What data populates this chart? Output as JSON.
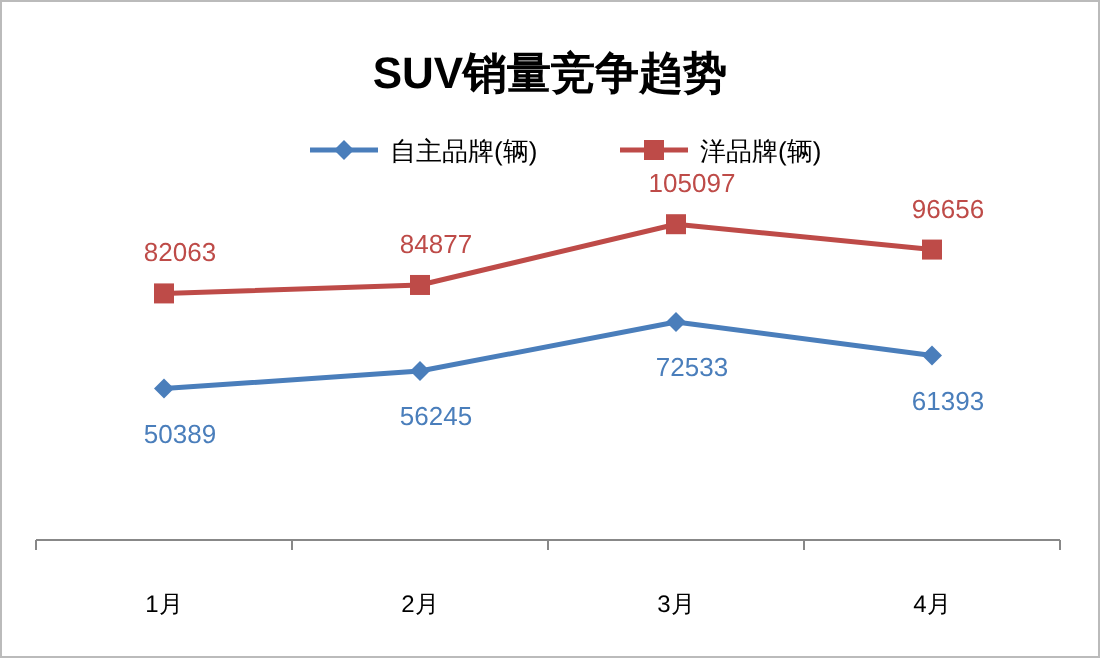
{
  "chart_data": {
    "type": "line",
    "title": "SUV销量竞争趋势",
    "categories": [
      "1月",
      "2月",
      "3月",
      "4月"
    ],
    "series": [
      {
        "name": "自主品牌(辆)",
        "color": "#4a7ebb",
        "marker": "diamond",
        "values": [
          50389,
          56245,
          72533,
          61393
        ]
      },
      {
        "name": "洋品牌(辆)",
        "color": "#be4b48",
        "marker": "square",
        "values": [
          82063,
          84877,
          105097,
          96656
        ]
      }
    ],
    "tick_labels": "x",
    "data_labels": true,
    "legend": "top",
    "grid": false
  }
}
